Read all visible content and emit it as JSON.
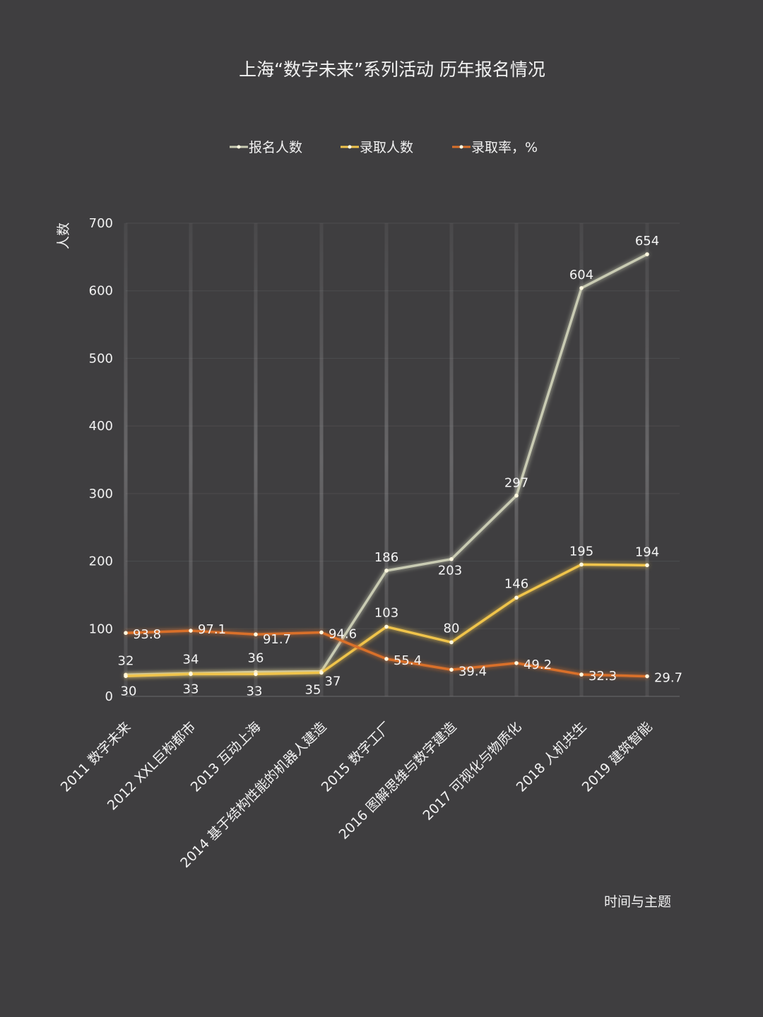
{
  "chart_data": {
    "type": "line",
    "title": "上海“数字未来”系列活动  历年报名情况",
    "ylabel": "人数",
    "xlabel": "时间与主题",
    "ylim": [
      0,
      700
    ],
    "yticks": [
      0,
      100,
      200,
      300,
      400,
      500,
      600,
      700
    ],
    "grid": true,
    "legend_position": "top",
    "categories": [
      "2011  数字未来",
      "2012  XXL巨构都市",
      "2013  互动上海",
      "2014  基于结构性能的机器人建造",
      "2015  数字工厂",
      "2016  图解思维与数字建造",
      "2017  可视化与物质化",
      "2018  人机共生",
      "2019  建筑智能"
    ],
    "series": [
      {
        "name": "报名人数",
        "color": "#c9cbb3",
        "values": [
          32,
          34,
          36,
          37,
          186,
          203,
          297,
          604,
          654
        ]
      },
      {
        "name": "录取人数",
        "color": "#f0c44c",
        "values": [
          30,
          33,
          33,
          35,
          103,
          80,
          146,
          195,
          194
        ]
      },
      {
        "name": "录取率，%",
        "color": "#d9702a",
        "values": [
          93.8,
          97.1,
          91.7,
          94.6,
          55.4,
          39.4,
          49.2,
          32.3,
          29.7
        ]
      }
    ]
  }
}
